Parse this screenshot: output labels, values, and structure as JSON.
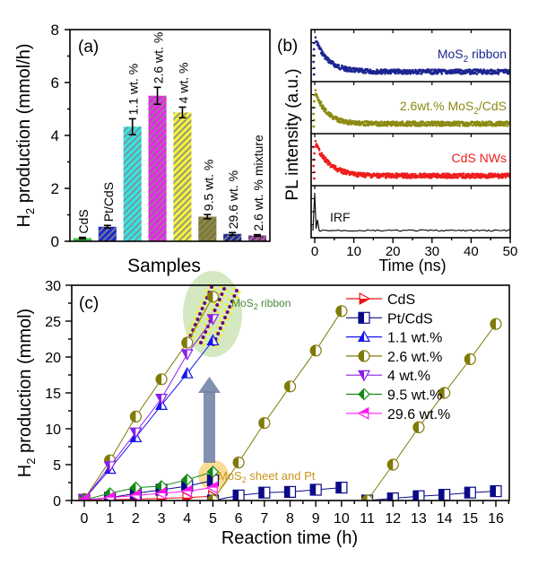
{
  "chart_data": [
    {
      "panel": "(a)",
      "type": "bar",
      "title": "",
      "xlabel": "Samples",
      "ylabel": "H2 production (mmol/h)",
      "ylabel_main": "H",
      "ylabel_sub": "2",
      "ylabel_rest": " production (mmol/h)",
      "ylim": [
        0,
        8
      ],
      "yticks": [
        "0",
        "2",
        "4",
        "6",
        "8"
      ],
      "yticks_values": [
        0,
        2,
        4,
        6,
        8
      ],
      "categories": [
        "CdS",
        "Pt/CdS",
        "1.1 wt. %",
        "2.6 wt. %",
        "4 wt. %",
        "9.5 wt. %",
        "29.6 wt. %",
        "2.6 wt. % mixture"
      ],
      "values": [
        0.12,
        0.55,
        4.33,
        5.5,
        4.87,
        0.93,
        0.28,
        0.22
      ],
      "errors": [
        0.03,
        0.05,
        0.3,
        0.32,
        0.2,
        0.08,
        0.05,
        0.03
      ],
      "colors": [
        "#22dd22",
        "#1a2bcc",
        "#33e6e6",
        "#ee22ee",
        "#f5f53a",
        "#807a1e",
        "#1c2690",
        "#8a2a8a"
      ],
      "hatched": true
    },
    {
      "panel": "(b)",
      "type": "scatter",
      "xlabel": "Time (ns)",
      "ylabel": "PL intensity (a.u.)",
      "xlim": [
        0,
        50
      ],
      "xticks": [
        "0",
        "10",
        "20",
        "30",
        "40",
        "50"
      ],
      "xticks_values": [
        0,
        10,
        20,
        30,
        40,
        50
      ],
      "stacked_panels": [
        {
          "name": "MoS2 ribbon",
          "label_main": "MoS",
          "label_sub": "2",
          "label_rest": " ribbon",
          "color": "#1c2690",
          "tau_ns": 3.2
        },
        {
          "name": "2.6wt.% MoS2/CdS",
          "label_main": "2.6wt.% MoS",
          "label_sub": "2",
          "label_rest": "/CdS",
          "color": "#8c8a12",
          "tau_ns": 2.8
        },
        {
          "name": "CdS NWs",
          "label_main": "CdS NWs",
          "label_sub": "",
          "label_rest": "",
          "color": "#ee1c1c",
          "tau_ns": 3.5
        },
        {
          "name": "IRF",
          "label_main": "IRF",
          "label_sub": "",
          "label_rest": "",
          "color": "#111111",
          "tau_ns": 0.2
        }
      ]
    },
    {
      "panel": "(c)",
      "type": "line",
      "xlabel": "Reaction time (h)",
      "ylabel": "H2 production (mmol)",
      "ylabel_main": "H",
      "ylabel_sub": "2",
      "ylabel_rest": " production (mmol)",
      "xlim": [
        -0.5,
        16.5
      ],
      "ylim": [
        0,
        30
      ],
      "xticks": [
        "0",
        "1",
        "2",
        "3",
        "4",
        "5",
        "6",
        "7",
        "8",
        "9",
        "10",
        "11",
        "12",
        "13",
        "14",
        "15",
        "16"
      ],
      "yticks": [
        "0",
        "5",
        "10",
        "15",
        "20",
        "25",
        "30"
      ],
      "yticks_values": [
        0,
        5,
        10,
        15,
        20,
        25,
        30
      ],
      "series": [
        {
          "name": "CdS",
          "color": "#ee1111",
          "marker": "triangle-right",
          "segments": [
            {
              "x": [
                0,
                1,
                2,
                3,
                4,
                5
              ],
              "y": [
                0.1,
                0.1,
                0.2,
                0.3,
                0.4,
                0.6
              ]
            }
          ]
        },
        {
          "name": "Pt/CdS",
          "color": "#0a0a88",
          "marker": "square",
          "segments": [
            {
              "x": [
                0,
                1,
                2,
                3,
                4,
                5
              ],
              "y": [
                0.1,
                0.4,
                1.0,
                1.5,
                2.0,
                2.8
              ]
            },
            {
              "x": [
                5,
                6,
                7,
                8,
                9,
                10
              ],
              "y": [
                0,
                0.7,
                1.1,
                1.2,
                1.5,
                1.8
              ]
            },
            {
              "x": [
                11,
                12,
                13,
                14,
                15,
                16
              ],
              "y": [
                0,
                0.3,
                0.6,
                0.8,
                1.1,
                1.3
              ]
            }
          ]
        },
        {
          "name": "1.1 wt.%",
          "color": "#1515ee",
          "marker": "triangle-up",
          "segments": [
            {
              "x": [
                0,
                1,
                2,
                3,
                4,
                5
              ],
              "y": [
                0.2,
                4.4,
                8.8,
                13.3,
                17.7,
                22.3
              ]
            }
          ]
        },
        {
          "name": "2.6 wt.%",
          "color": "#807a08",
          "marker": "circle",
          "segments": [
            {
              "x": [
                0,
                1,
                2,
                3,
                4,
                5
              ],
              "y": [
                0.2,
                5.6,
                11.7,
                16.9,
                22.0,
                28.4
              ]
            },
            {
              "x": [
                5,
                6,
                7,
                8,
                9,
                10
              ],
              "y": [
                0,
                5.3,
                10.8,
                15.9,
                20.9,
                26.4
              ]
            },
            {
              "x": [
                11,
                12,
                13,
                14,
                15,
                16
              ],
              "y": [
                0,
                5.0,
                10.2,
                15.0,
                19.7,
                24.6
              ]
            }
          ]
        },
        {
          "name": "4 wt.%",
          "color": "#8a1ee8",
          "marker": "triangle-down",
          "segments": [
            {
              "x": [
                0,
                1,
                2,
                3,
                4,
                5
              ],
              "y": [
                0.2,
                4.8,
                9.5,
                14.2,
                20.4,
                25.3
              ]
            }
          ]
        },
        {
          "name": "9.5 wt.%",
          "color": "#128a12",
          "marker": "diamond",
          "segments": [
            {
              "x": [
                0,
                1,
                2,
                3,
                4,
                5
              ],
              "y": [
                0.1,
                1.0,
                1.8,
                2.0,
                2.9,
                4.0
              ]
            }
          ]
        },
        {
          "name": "29.6 wt.%",
          "color": "#ff18ee",
          "marker": "triangle-left",
          "segments": [
            {
              "x": [
                0,
                1,
                2,
                3,
                4,
                5
              ],
              "y": [
                0.1,
                0.4,
                0.7,
                1.0,
                1.3,
                1.8
              ]
            }
          ]
        }
      ],
      "annotations": [
        {
          "text_main": "MoS",
          "text_sub": "2",
          "text_rest": " ribbon",
          "color": "#4a8a3a"
        },
        {
          "text_main": "MoS",
          "text_sub": "2",
          "text_rest": " sheet and Pt",
          "color": "#c8961a"
        }
      ]
    }
  ]
}
